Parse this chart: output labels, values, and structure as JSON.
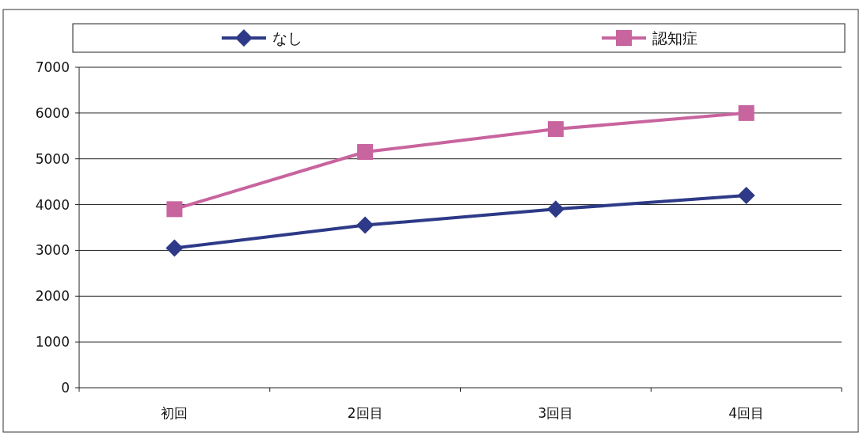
{
  "chart_data": {
    "type": "line",
    "categories": [
      "初回",
      "2回目",
      "3回目",
      "4回目"
    ],
    "series": [
      {
        "name": "なし",
        "color": "#2e3a87",
        "marker": "diamond",
        "values": [
          3050,
          3550,
          3900,
          4200
        ]
      },
      {
        "name": "認知症",
        "color": "#c8649e",
        "marker": "square",
        "values": [
          3900,
          5150,
          5650,
          6000
        ]
      }
    ],
    "ylim": [
      0,
      7000
    ],
    "yticks": [
      0,
      1000,
      2000,
      3000,
      4000,
      5000,
      6000,
      7000
    ],
    "grid": "y",
    "legend": "top"
  }
}
